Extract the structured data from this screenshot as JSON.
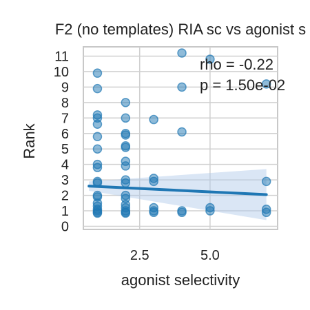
{
  "chart_data": {
    "type": "scatter",
    "title": "F2 (no templates) RIA sc vs agonist s",
    "xlabel": "agonist selectivity",
    "ylabel": "Rank",
    "xlim": [
      0.5,
      7.4
    ],
    "ylim": [
      -0.2,
      11.6
    ],
    "xticks": [
      2.5,
      5.0
    ],
    "xtick_labels": [
      "2.5",
      "5.0"
    ],
    "yticks": [
      0,
      1,
      2,
      3,
      4,
      5,
      6,
      7,
      8,
      9,
      10,
      11
    ],
    "ytick_labels": [
      "0",
      "1",
      "2",
      "3",
      "4",
      "5",
      "6",
      "7",
      "8",
      "9",
      "10",
      "11"
    ],
    "grid": true,
    "annotations": [
      "rho = -0.22",
      "p = 1.50e-02"
    ],
    "colors": {
      "points": "#1f77b4",
      "line": "#1f77b4",
      "band": "#aec7e8",
      "grid": "#d0d0d0",
      "spine": "#c8c8c8"
    },
    "series": [
      {
        "points": [
          {
            "x": 1,
            "y": 9.9
          },
          {
            "x": 1,
            "y": 8.9
          },
          {
            "x": 1,
            "y": 7.2
          },
          {
            "x": 1,
            "y": 7.0
          },
          {
            "x": 1,
            "y": 6.6
          },
          {
            "x": 1,
            "y": 5.8
          },
          {
            "x": 1,
            "y": 5.0
          },
          {
            "x": 1,
            "y": 4.0
          },
          {
            "x": 1,
            "y": 3.8
          },
          {
            "x": 1,
            "y": 2.9
          },
          {
            "x": 1,
            "y": 2.8
          },
          {
            "x": 1,
            "y": 2.0
          },
          {
            "x": 1,
            "y": 1.9
          },
          {
            "x": 1,
            "y": 1.5
          },
          {
            "x": 1,
            "y": 1.3
          },
          {
            "x": 1,
            "y": 1.1
          },
          {
            "x": 1,
            "y": 1.0
          },
          {
            "x": 1,
            "y": 0.9
          },
          {
            "x": 1,
            "y": 0.85
          },
          {
            "x": 2,
            "y": 8.0
          },
          {
            "x": 2,
            "y": 7.0
          },
          {
            "x": 2,
            "y": 6.0
          },
          {
            "x": 2,
            "y": 5.9
          },
          {
            "x": 2,
            "y": 5.2
          },
          {
            "x": 2,
            "y": 5.1
          },
          {
            "x": 2,
            "y": 4.2
          },
          {
            "x": 2,
            "y": 3.9
          },
          {
            "x": 2,
            "y": 3.0
          },
          {
            "x": 2,
            "y": 2.8
          },
          {
            "x": 2,
            "y": 2.0
          },
          {
            "x": 2,
            "y": 1.8
          },
          {
            "x": 2,
            "y": 1.4
          },
          {
            "x": 2,
            "y": 1.2
          },
          {
            "x": 2,
            "y": 1.0
          },
          {
            "x": 2,
            "y": 0.9
          },
          {
            "x": 2,
            "y": 0.85
          },
          {
            "x": 3,
            "y": 6.9
          },
          {
            "x": 3,
            "y": 3.1
          },
          {
            "x": 3,
            "y": 2.9
          },
          {
            "x": 3,
            "y": 1.2
          },
          {
            "x": 3,
            "y": 1.0
          },
          {
            "x": 3,
            "y": 0.9
          },
          {
            "x": 4,
            "y": 11.2
          },
          {
            "x": 4,
            "y": 9.0
          },
          {
            "x": 4,
            "y": 6.1
          },
          {
            "x": 4,
            "y": 1.0
          },
          {
            "x": 4,
            "y": 0.9
          },
          {
            "x": 5,
            "y": 10.8
          },
          {
            "x": 5,
            "y": 1.2
          },
          {
            "x": 5,
            "y": 1.0
          },
          {
            "x": 7,
            "y": 9.2
          },
          {
            "x": 7,
            "y": 2.9
          },
          {
            "x": 7,
            "y": 1.1
          },
          {
            "x": 7,
            "y": 0.9
          }
        ]
      }
    ],
    "regression": {
      "x": [
        0.7,
        7.0
      ],
      "y": [
        2.6,
        2.05
      ],
      "ci_lower": [
        2.3,
        0.4
      ],
      "ci_upper": [
        2.9,
        3.7
      ]
    }
  }
}
